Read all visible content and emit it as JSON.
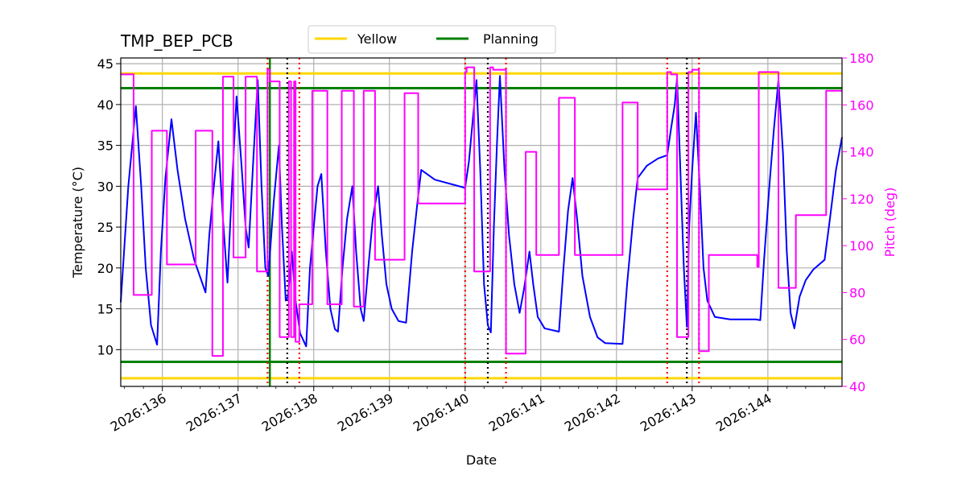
{
  "chart_data": {
    "type": "line",
    "title": "TMP_BEP_PCB",
    "xlabel": "Date",
    "ylabel_left": "Temperature ($^\\circ$C)",
    "ylabel_left_display": "Temperature (°C)",
    "ylabel_right": "Pitch (deg)",
    "xlim_day": [
      135.45,
      144.98
    ],
    "ylim_left": [
      5.5,
      45.7
    ],
    "ylim_right": [
      40,
      180
    ],
    "grid": true,
    "legend": {
      "placement": "top-center",
      "entries": [
        {
          "label": "Yellow",
          "color": "#ffd700"
        },
        {
          "label": "Planning",
          "color": "#008000"
        }
      ]
    },
    "x_ticks": [
      {
        "day": 136,
        "label": "2026:136"
      },
      {
        "day": 137,
        "label": "2026:137"
      },
      {
        "day": 138,
        "label": "2026:138"
      },
      {
        "day": 139,
        "label": "2026:139"
      },
      {
        "day": 140,
        "label": "2026:140"
      },
      {
        "day": 141,
        "label": "2026:141"
      },
      {
        "day": 142,
        "label": "2026:142"
      },
      {
        "day": 143,
        "label": "2026:143"
      },
      {
        "day": 144,
        "label": "2026:144"
      }
    ],
    "y_ticks_left": [
      {
        "value": 10,
        "label": "10"
      },
      {
        "value": 15,
        "label": "15"
      },
      {
        "value": 20,
        "label": "20"
      },
      {
        "value": 25,
        "label": "25"
      },
      {
        "value": 30,
        "label": "30"
      },
      {
        "value": 35,
        "label": "35"
      },
      {
        "value": 40,
        "label": "40"
      },
      {
        "value": 45,
        "label": "45"
      }
    ],
    "y_ticks_right": [
      {
        "value": 40,
        "label": "40"
      },
      {
        "value": 60,
        "label": "60"
      },
      {
        "value": 80,
        "label": "80"
      },
      {
        "value": 100,
        "label": "100"
      },
      {
        "value": 120,
        "label": "120"
      },
      {
        "value": 140,
        "label": "140"
      },
      {
        "value": 160,
        "label": "160"
      },
      {
        "value": 180,
        "label": "180"
      }
    ],
    "hlines": [
      {
        "name": "Yellow",
        "values": [
          43.8,
          6.5
        ],
        "color": "#ffd700"
      },
      {
        "name": "Planning",
        "values": [
          42.0,
          8.5
        ],
        "color": "#008000"
      }
    ],
    "vline_green": {
      "day": 137.42,
      "color": "#008000"
    },
    "vlines_red_dotted": [
      137.39,
      137.81,
      140.0,
      140.54,
      142.67,
      143.09
    ],
    "vlines_black_dotted": [
      137.65,
      140.3,
      142.93
    ],
    "series": [
      {
        "color": "#0000ff",
        "axis": "left",
        "points": [
          [
            135.45,
            15.8
          ],
          [
            135.55,
            30.0
          ],
          [
            135.65,
            39.8
          ],
          [
            135.72,
            30.0
          ],
          [
            135.78,
            20.0
          ],
          [
            135.85,
            13.0
          ],
          [
            135.93,
            10.6
          ],
          [
            135.98,
            22.0
          ],
          [
            136.04,
            31.0
          ],
          [
            136.12,
            38.2
          ],
          [
            136.2,
            32.0
          ],
          [
            136.3,
            26.0
          ],
          [
            136.42,
            21.0
          ],
          [
            136.57,
            17.0
          ],
          [
            136.62,
            24.0
          ],
          [
            136.68,
            30.0
          ],
          [
            136.74,
            35.5
          ],
          [
            136.8,
            26.0
          ],
          [
            136.86,
            18.2
          ],
          [
            136.92,
            30.0
          ],
          [
            136.98,
            41.0
          ],
          [
            137.05,
            32.0
          ],
          [
            137.1,
            25.0
          ],
          [
            137.14,
            22.5
          ],
          [
            137.2,
            33.0
          ],
          [
            137.26,
            43.0
          ],
          [
            137.31,
            30.0
          ],
          [
            137.36,
            20.0
          ],
          [
            137.4,
            19.0
          ],
          [
            137.47,
            28.0
          ],
          [
            137.54,
            35.0
          ],
          [
            137.58,
            25.0
          ],
          [
            137.63,
            16.0
          ],
          [
            137.66,
            16.5
          ],
          [
            137.71,
            22.0
          ],
          [
            137.76,
            16.0
          ],
          [
            137.82,
            12.0
          ],
          [
            137.9,
            10.4
          ],
          [
            137.95,
            20.0
          ],
          [
            138.0,
            25.0
          ],
          [
            138.05,
            30.0
          ],
          [
            138.1,
            31.5
          ],
          [
            138.16,
            22.0
          ],
          [
            138.22,
            15.0
          ],
          [
            138.28,
            12.5
          ],
          [
            138.32,
            12.2
          ],
          [
            138.38,
            20.0
          ],
          [
            138.44,
            26.0
          ],
          [
            138.51,
            30.0
          ],
          [
            138.56,
            22.0
          ],
          [
            138.62,
            15.0
          ],
          [
            138.66,
            13.5
          ],
          [
            138.72,
            20.0
          ],
          [
            138.78,
            26.0
          ],
          [
            138.85,
            30.0
          ],
          [
            138.9,
            24.0
          ],
          [
            138.96,
            18.0
          ],
          [
            139.03,
            15.0
          ],
          [
            139.12,
            13.5
          ],
          [
            139.22,
            13.3
          ],
          [
            139.3,
            22.0
          ],
          [
            139.37,
            28.0
          ],
          [
            139.42,
            32.0
          ],
          [
            139.6,
            30.8
          ],
          [
            140.0,
            29.8
          ],
          [
            140.05,
            33.0
          ],
          [
            140.1,
            38.0
          ],
          [
            140.15,
            43.0
          ],
          [
            140.2,
            32.0
          ],
          [
            140.25,
            18.0
          ],
          [
            140.3,
            13.0
          ],
          [
            140.34,
            12.1
          ],
          [
            140.38,
            25.0
          ],
          [
            140.42,
            35.0
          ],
          [
            140.46,
            43.5
          ],
          [
            140.52,
            32.0
          ],
          [
            140.58,
            24.0
          ],
          [
            140.65,
            18.0
          ],
          [
            140.72,
            14.5
          ],
          [
            140.78,
            17.5
          ],
          [
            140.85,
            22.0
          ],
          [
            140.9,
            18.0
          ],
          [
            140.96,
            14.0
          ],
          [
            141.05,
            12.6
          ],
          [
            141.24,
            12.2
          ],
          [
            141.3,
            20.0
          ],
          [
            141.36,
            27.0
          ],
          [
            141.42,
            31.0
          ],
          [
            141.48,
            26.0
          ],
          [
            141.55,
            19.0
          ],
          [
            141.65,
            14.0
          ],
          [
            141.75,
            11.5
          ],
          [
            141.85,
            10.8
          ],
          [
            142.08,
            10.7
          ],
          [
            142.14,
            18.0
          ],
          [
            142.22,
            26.0
          ],
          [
            142.28,
            31.0
          ],
          [
            142.4,
            32.5
          ],
          [
            142.55,
            33.4
          ],
          [
            142.67,
            33.8
          ],
          [
            142.72,
            37.0
          ],
          [
            142.77,
            40.0
          ],
          [
            142.8,
            43.2
          ],
          [
            142.84,
            33.0
          ],
          [
            142.89,
            20.0
          ],
          [
            142.93,
            12.8
          ],
          [
            142.96,
            25.0
          ],
          [
            143.0,
            32.0
          ],
          [
            143.05,
            39.0
          ],
          [
            143.1,
            30.0
          ],
          [
            143.15,
            20.0
          ],
          [
            143.2,
            16.0
          ],
          [
            143.3,
            14.0
          ],
          [
            143.5,
            13.7
          ],
          [
            143.84,
            13.7
          ],
          [
            143.9,
            13.6
          ],
          [
            143.95,
            21.0
          ],
          [
            144.02,
            30.0
          ],
          [
            144.08,
            37.0
          ],
          [
            144.14,
            43.0
          ],
          [
            144.2,
            34.0
          ],
          [
            144.25,
            22.0
          ],
          [
            144.3,
            14.5
          ],
          [
            144.35,
            12.6
          ],
          [
            144.42,
            16.5
          ],
          [
            144.5,
            18.5
          ],
          [
            144.6,
            19.8
          ],
          [
            144.75,
            21.0
          ],
          [
            144.82,
            26.0
          ],
          [
            144.9,
            32.0
          ],
          [
            144.98,
            36.0
          ]
        ]
      },
      {
        "color": "#ff00ff",
        "axis": "right",
        "points": [
          [
            135.45,
            173
          ],
          [
            135.62,
            173
          ],
          [
            135.62,
            79
          ],
          [
            135.86,
            79
          ],
          [
            135.86,
            149
          ],
          [
            136.06,
            149
          ],
          [
            136.06,
            92
          ],
          [
            136.44,
            92
          ],
          [
            136.44,
            149
          ],
          [
            136.66,
            149
          ],
          [
            136.66,
            53
          ],
          [
            136.8,
            53
          ],
          [
            136.8,
            172
          ],
          [
            136.94,
            172
          ],
          [
            136.94,
            95
          ],
          [
            137.1,
            95
          ],
          [
            137.1,
            172
          ],
          [
            137.25,
            172
          ],
          [
            137.25,
            89
          ],
          [
            137.39,
            89
          ],
          [
            137.39,
            175
          ],
          [
            137.42,
            175
          ],
          [
            137.42,
            170
          ],
          [
            137.55,
            170
          ],
          [
            137.55,
            61
          ],
          [
            137.67,
            61
          ],
          [
            137.67,
            170
          ],
          [
            137.7,
            170
          ],
          [
            137.7,
            61
          ],
          [
            137.74,
            61
          ],
          [
            137.74,
            170
          ],
          [
            137.76,
            170
          ],
          [
            137.76,
            59
          ],
          [
            137.81,
            59
          ],
          [
            137.81,
            75
          ],
          [
            137.98,
            75
          ],
          [
            137.98,
            166
          ],
          [
            138.18,
            166
          ],
          [
            138.18,
            75
          ],
          [
            138.37,
            75
          ],
          [
            138.37,
            166
          ],
          [
            138.53,
            166
          ],
          [
            138.53,
            74
          ],
          [
            138.66,
            74
          ],
          [
            138.66,
            166
          ],
          [
            138.81,
            166
          ],
          [
            138.81,
            94
          ],
          [
            139.2,
            94
          ],
          [
            139.2,
            165
          ],
          [
            139.38,
            165
          ],
          [
            139.38,
            118
          ],
          [
            140.0,
            118
          ],
          [
            140.0,
            174
          ],
          [
            140.02,
            174
          ],
          [
            140.02,
            176
          ],
          [
            140.12,
            176
          ],
          [
            140.12,
            89
          ],
          [
            140.33,
            89
          ],
          [
            140.33,
            176
          ],
          [
            140.37,
            176
          ],
          [
            140.37,
            175
          ],
          [
            140.54,
            175
          ],
          [
            140.54,
            54
          ],
          [
            140.8,
            54
          ],
          [
            140.8,
            140
          ],
          [
            140.94,
            140
          ],
          [
            140.94,
            96
          ],
          [
            141.24,
            96
          ],
          [
            141.24,
            163
          ],
          [
            141.45,
            163
          ],
          [
            141.45,
            96
          ],
          [
            142.08,
            96
          ],
          [
            142.08,
            161
          ],
          [
            142.28,
            161
          ],
          [
            142.28,
            124
          ],
          [
            142.67,
            124
          ],
          [
            142.67,
            174
          ],
          [
            142.72,
            174
          ],
          [
            142.72,
            173
          ],
          [
            142.8,
            173
          ],
          [
            142.8,
            61
          ],
          [
            142.95,
            61
          ],
          [
            142.95,
            174
          ],
          [
            143.0,
            174
          ],
          [
            143.0,
            175
          ],
          [
            143.09,
            175
          ],
          [
            143.09,
            55
          ],
          [
            143.22,
            55
          ],
          [
            143.22,
            96
          ],
          [
            143.86,
            96
          ],
          [
            143.86,
            91
          ],
          [
            143.88,
            91
          ],
          [
            143.88,
            174
          ],
          [
            144.14,
            174
          ],
          [
            144.14,
            82
          ],
          [
            144.37,
            82
          ],
          [
            144.37,
            113
          ],
          [
            144.77,
            113
          ],
          [
            144.77,
            166
          ],
          [
            144.98,
            166
          ]
        ]
      }
    ]
  }
}
